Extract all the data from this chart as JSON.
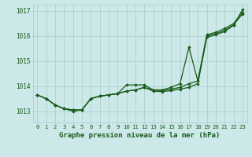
{
  "title": "Graphe pression niveau de la mer (hPa)",
  "x": [
    0,
    1,
    2,
    3,
    4,
    5,
    6,
    7,
    8,
    9,
    10,
    11,
    12,
    13,
    14,
    15,
    16,
    17,
    18,
    19,
    20,
    21,
    22,
    23
  ],
  "line1": [
    1013.65,
    1013.5,
    1013.25,
    1013.1,
    1013.0,
    1013.05,
    1013.5,
    1013.6,
    1013.65,
    1013.7,
    1014.05,
    1014.05,
    1014.05,
    1013.85,
    1013.85,
    1013.95,
    1014.1,
    1015.55,
    1014.2,
    1016.05,
    1016.15,
    1016.3,
    1016.5,
    1016.95
  ],
  "line2": [
    1013.65,
    1013.5,
    1013.25,
    1013.1,
    1013.05,
    1013.05,
    1013.5,
    1013.6,
    1013.65,
    1013.7,
    1013.8,
    1013.85,
    1013.95,
    1013.85,
    1013.82,
    1013.88,
    1013.95,
    1014.1,
    1014.2,
    1016.0,
    1016.1,
    1016.22,
    1016.45,
    1016.88
  ],
  "line3": [
    1013.65,
    1013.5,
    1013.25,
    1013.1,
    1013.05,
    1013.05,
    1013.5,
    1013.6,
    1013.65,
    1013.7,
    1013.8,
    1013.85,
    1013.95,
    1013.8,
    1013.78,
    1013.82,
    1013.88,
    1013.95,
    1014.1,
    1015.95,
    1016.05,
    1016.18,
    1016.42,
    1017.05
  ],
  "ylim": [
    1012.55,
    1017.25
  ],
  "yticks": [
    1013,
    1014,
    1015,
    1016,
    1017
  ],
  "xticks": [
    0,
    1,
    2,
    3,
    4,
    5,
    6,
    7,
    8,
    9,
    10,
    11,
    12,
    13,
    14,
    15,
    16,
    17,
    18,
    19,
    20,
    21,
    22,
    23
  ],
  "background_color": "#cce8e8",
  "grid_color": "#aacccc",
  "line_color": "#1a5c1a",
  "tick_color": "#1a5c1a",
  "title_color": "#1a5c1a"
}
